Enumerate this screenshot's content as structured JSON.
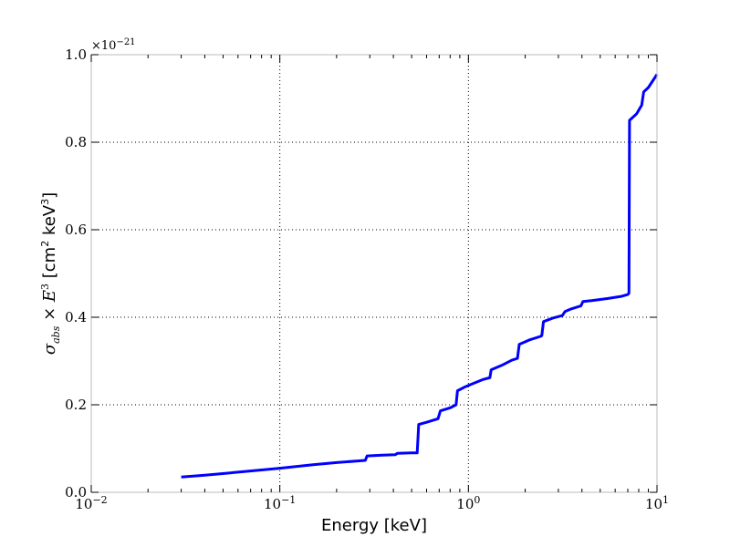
{
  "chart_data": {
    "type": "line",
    "title": "",
    "xlabel": "Energy [keV]",
    "ylabel": "σabs × E3 [cm2 keV3]",
    "xscale": "log",
    "xlim": [
      0.01,
      10
    ],
    "ylim": [
      0,
      1.0
    ],
    "y_multiplier": "×10−21",
    "x_ticks": [
      0.01,
      0.1,
      1,
      10
    ],
    "x_tick_labels": [
      {
        "base": "10",
        "exp": "−2"
      },
      {
        "base": "10",
        "exp": "−1"
      },
      {
        "base": "10",
        "exp": "0"
      },
      {
        "base": "10",
        "exp": "1"
      }
    ],
    "y_ticks": [
      0.0,
      0.2,
      0.4,
      0.6,
      0.8,
      1.0
    ],
    "y_tick_labels": [
      "0.0",
      "0.2",
      "0.4",
      "0.6",
      "0.8",
      "1.0"
    ],
    "grid": true,
    "legend": "none",
    "colors": {
      "line": "#0000ff",
      "grid": "#000000",
      "frame": "#bbbbbb"
    },
    "series": [
      {
        "x": [
          0.03,
          0.04,
          0.06,
          0.1,
          0.15,
          0.2,
          0.284,
          0.29,
          0.35,
          0.41,
          0.42,
          0.5,
          0.535,
          0.545,
          0.6,
          0.69,
          0.71,
          0.8,
          0.86,
          0.875,
          0.95,
          1.05,
          1.2,
          1.3,
          1.32,
          1.5,
          1.7,
          1.82,
          1.86,
          2.1,
          2.4,
          2.45,
          2.5,
          2.8,
          3.15,
          3.25,
          3.5,
          3.95,
          4.05,
          4.5,
          5.5,
          6.5,
          7.0,
          7.1,
          7.15,
          7.8,
          8.3,
          8.5,
          9.0,
          10.0
        ],
        "y": [
          0.035,
          0.039,
          0.046,
          0.055,
          0.063,
          0.068,
          0.073,
          0.083,
          0.085,
          0.086,
          0.089,
          0.09,
          0.09,
          0.155,
          0.16,
          0.168,
          0.186,
          0.193,
          0.2,
          0.232,
          0.24,
          0.248,
          0.258,
          0.262,
          0.28,
          0.29,
          0.302,
          0.306,
          0.338,
          0.348,
          0.356,
          0.358,
          0.39,
          0.398,
          0.404,
          0.413,
          0.419,
          0.426,
          0.436,
          0.438,
          0.443,
          0.448,
          0.452,
          0.455,
          0.85,
          0.865,
          0.885,
          0.915,
          0.925,
          0.955
        ]
      }
    ]
  }
}
